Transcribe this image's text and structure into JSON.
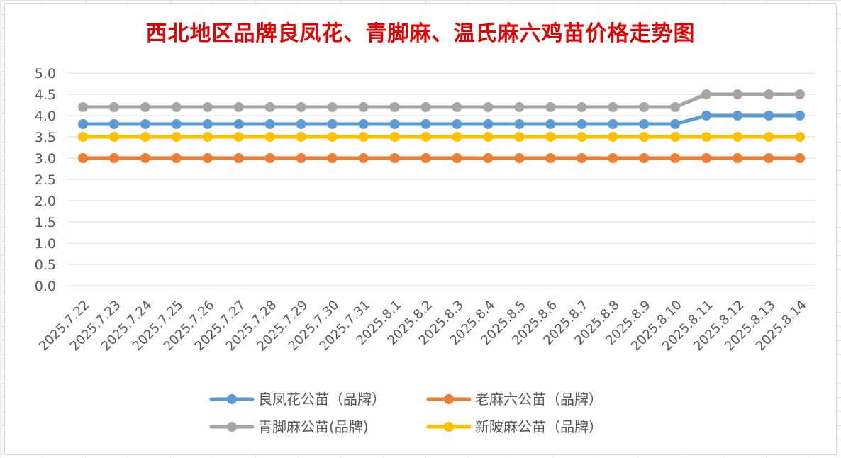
{
  "chart_data": {
    "type": "line",
    "title": "西北地区品牌良凤花、青脚麻、温氏麻六鸡苗价格走势图",
    "xlabel": "",
    "ylabel": "",
    "ylim": [
      0,
      5
    ],
    "yticks": [
      "0.0",
      "0.5",
      "1.0",
      "1.5",
      "2.0",
      "2.5",
      "3.0",
      "3.5",
      "4.0",
      "4.5",
      "5.0"
    ],
    "grid": true,
    "legend_position": "bottom",
    "categories": [
      "2025.7.22",
      "2025.7.23",
      "2025.7.24",
      "2025.7.25",
      "2025.7.26",
      "2025.7.27",
      "2025.7.28",
      "2025.7.29",
      "2025.7.30",
      "2025.7.31",
      "2025.8.1",
      "2025.8.2",
      "2025.8.3",
      "2025.8.4",
      "2025.8.5",
      "2025.8.6",
      "2025.8.7",
      "2025.8.8",
      "2025.8.9",
      "2025.8.10",
      "2025.8.11",
      "2025.8.12",
      "2025.8.13",
      "2025.8.14"
    ],
    "series": [
      {
        "name": "良凤花公苗（品牌）",
        "color": "#5b9bd5",
        "values": [
          3.8,
          3.8,
          3.8,
          3.8,
          3.8,
          3.8,
          3.8,
          3.8,
          3.8,
          3.8,
          3.8,
          3.8,
          3.8,
          3.8,
          3.8,
          3.8,
          3.8,
          3.8,
          3.8,
          3.8,
          4.0,
          4.0,
          4.0,
          4.0
        ]
      },
      {
        "name": "老麻六公苗（品牌）",
        "color": "#ed7d31",
        "values": [
          3.0,
          3.0,
          3.0,
          3.0,
          3.0,
          3.0,
          3.0,
          3.0,
          3.0,
          3.0,
          3.0,
          3.0,
          3.0,
          3.0,
          3.0,
          3.0,
          3.0,
          3.0,
          3.0,
          3.0,
          3.0,
          3.0,
          3.0,
          3.0
        ]
      },
      {
        "name": "青脚麻公苗(品牌)",
        "color": "#a5a5a5",
        "values": [
          4.2,
          4.2,
          4.2,
          4.2,
          4.2,
          4.2,
          4.2,
          4.2,
          4.2,
          4.2,
          4.2,
          4.2,
          4.2,
          4.2,
          4.2,
          4.2,
          4.2,
          4.2,
          4.2,
          4.2,
          4.5,
          4.5,
          4.5,
          4.5
        ]
      },
      {
        "name": "新陂麻公苗（品牌）",
        "color": "#ffc000",
        "values": [
          3.5,
          3.5,
          3.5,
          3.5,
          3.5,
          3.5,
          3.5,
          3.5,
          3.5,
          3.5,
          3.5,
          3.5,
          3.5,
          3.5,
          3.5,
          3.5,
          3.5,
          3.5,
          3.5,
          3.5,
          3.5,
          3.5,
          3.5,
          3.5
        ]
      }
    ],
    "draw_order": [
      2,
      0,
      3,
      1
    ]
  }
}
